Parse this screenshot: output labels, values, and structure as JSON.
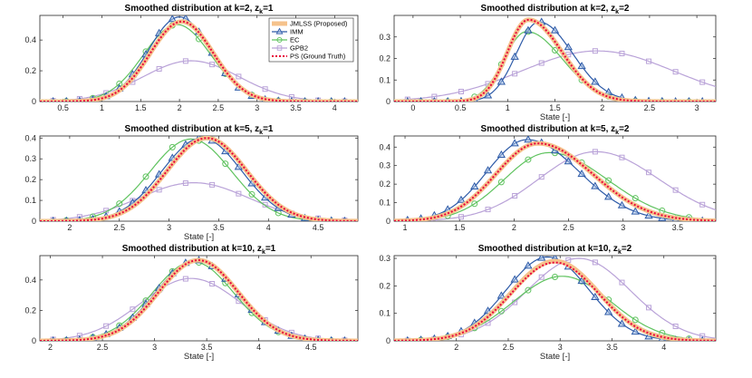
{
  "figure_title": "Smoothed distributions",
  "colors": {
    "jmlss": "#F5C28C",
    "imm": "#2E5BA8",
    "ec": "#5FC35F",
    "gpb2": "#B9A2D8",
    "ps": "#E8003C"
  },
  "legend": {
    "jmlss": "JMLSS (Proposed)",
    "imm": "IMM",
    "ec": "EC",
    "gpb2": "GPB2",
    "ps": "PS (Ground Truth)"
  },
  "chart_data": [
    {
      "type": "line",
      "title_text": "Smoothed distribution at k=2, z",
      "title_sub": "k",
      "title_suffix": "=1",
      "xlabel": "",
      "xlim": [
        0.2,
        4.3
      ],
      "ylim": [
        0,
        0.56
      ],
      "xticks": [
        0.5,
        1,
        1.5,
        2,
        2.5,
        3,
        3.5,
        4
      ],
      "yticks": [
        0,
        0.2,
        0.4
      ],
      "series": [
        {
          "name": "JMLSS (Proposed)",
          "key": "jmlss",
          "mu": 2.03,
          "sigma": 0.405,
          "peak": 0.52
        },
        {
          "name": "IMM",
          "key": "imm",
          "mu": 2.0,
          "sigma": 0.4,
          "peak": 0.55
        },
        {
          "name": "EC",
          "key": "ec",
          "mu": 1.97,
          "sigma": 0.435,
          "peak": 0.5
        },
        {
          "name": "GPB2",
          "key": "gpb2",
          "mu": 2.15,
          "sigma": 0.62,
          "peak": 0.265
        },
        {
          "name": "PS (Ground Truth)",
          "key": "ps",
          "mu": 2.03,
          "sigma": 0.405,
          "peak": 0.52
        }
      ]
    },
    {
      "type": "line",
      "title_text": "Smoothed distribution at k=2, z",
      "title_sub": "k",
      "title_suffix": "=2",
      "xlabel": "State [-]",
      "xlim": [
        -0.2,
        3.2
      ],
      "ylim": [
        0,
        0.4
      ],
      "xticks": [
        0,
        0.5,
        1,
        1.5,
        2,
        2.5,
        3
      ],
      "yticks": [
        0,
        0.1,
        0.2,
        0.3
      ],
      "series": [
        {
          "name": "JMLSS (Proposed)",
          "key": "jmlss",
          "mu": 1.22,
          "sigma": 0.28,
          "peak": 0.38,
          "skew": 1.6
        },
        {
          "name": "IMM",
          "key": "imm",
          "mu": 1.33,
          "sigma": 0.29,
          "peak": 0.37,
          "skew": 1.5
        },
        {
          "name": "EC",
          "key": "ec",
          "mu": 1.2,
          "sigma": 0.3,
          "peak": 0.325,
          "skew": 1.6
        },
        {
          "name": "GPB2",
          "key": "gpb2",
          "mu": 1.95,
          "sigma": 0.8,
          "peak": 0.235
        },
        {
          "name": "PS (Ground Truth)",
          "key": "ps",
          "mu": 1.22,
          "sigma": 0.28,
          "peak": 0.38,
          "skew": 1.6
        }
      ]
    },
    {
      "type": "line",
      "title_text": "Smoothed distribution at k=5, z",
      "title_sub": "k",
      "title_suffix": "=1",
      "xlabel": "State [-]",
      "xlim": [
        1.7,
        4.9
      ],
      "ylim": [
        0,
        0.41
      ],
      "xticks": [
        2,
        2.5,
        3,
        3.5,
        4,
        4.5
      ],
      "yticks": [
        0,
        0.1,
        0.2,
        0.3,
        0.4
      ],
      "series": [
        {
          "name": "JMLSS (Proposed)",
          "key": "jmlss",
          "mu": 3.38,
          "sigma": 0.4,
          "peak": 0.4
        },
        {
          "name": "IMM",
          "key": "imm",
          "mu": 3.33,
          "sigma": 0.4,
          "peak": 0.4
        },
        {
          "name": "EC",
          "key": "ec",
          "mu": 3.22,
          "sigma": 0.41,
          "peak": 0.395
        },
        {
          "name": "GPB2",
          "key": "gpb2",
          "mu": 3.25,
          "sigma": 0.55,
          "peak": 0.185
        },
        {
          "name": "PS (Ground Truth)",
          "key": "ps",
          "mu": 3.38,
          "sigma": 0.4,
          "peak": 0.4
        }
      ]
    },
    {
      "type": "line",
      "title_text": "Smoothed distribution at k=5, z",
      "title_sub": "k",
      "title_suffix": "=2",
      "xlabel": "",
      "xlim": [
        0.9,
        3.85
      ],
      "ylim": [
        0,
        0.46
      ],
      "xticks": [
        1,
        1.5,
        2,
        2.5,
        3,
        3.5
      ],
      "yticks": [
        0,
        0.1,
        0.2,
        0.3,
        0.4
      ],
      "series": [
        {
          "name": "JMLSS (Proposed)",
          "key": "jmlss",
          "mu": 2.22,
          "sigma": 0.44,
          "peak": 0.42,
          "skew": 1.3
        },
        {
          "name": "IMM",
          "key": "imm",
          "mu": 2.12,
          "sigma": 0.42,
          "peak": 0.44,
          "skew": 1.3
        },
        {
          "name": "EC",
          "key": "ec",
          "mu": 2.32,
          "sigma": 0.47,
          "peak": 0.37,
          "skew": 1.3
        },
        {
          "name": "GPB2",
          "key": "gpb2",
          "mu": 2.75,
          "sigma": 0.55,
          "peak": 0.375,
          "skew": 1.1
        },
        {
          "name": "PS (Ground Truth)",
          "key": "ps",
          "mu": 2.22,
          "sigma": 0.44,
          "peak": 0.42,
          "skew": 1.3
        }
      ]
    },
    {
      "type": "line",
      "title_text": "Smoothed distribution at k=10, z",
      "title_sub": "k",
      "title_suffix": "=1",
      "xlabel": "State [-]",
      "xlim": [
        1.9,
        4.95
      ],
      "ylim": [
        0,
        0.56
      ],
      "xticks": [
        2,
        2.5,
        3,
        3.5,
        4,
        4.5
      ],
      "yticks": [
        0,
        0.2,
        0.4
      ],
      "series": [
        {
          "name": "JMLSS (Proposed)",
          "key": "jmlss",
          "mu": 3.42,
          "sigma": 0.38,
          "peak": 0.53
        },
        {
          "name": "IMM",
          "key": "imm",
          "mu": 3.4,
          "sigma": 0.385,
          "peak": 0.53
        },
        {
          "name": "EC",
          "key": "ec",
          "mu": 3.37,
          "sigma": 0.39,
          "peak": 0.52
        },
        {
          "name": "GPB2",
          "key": "gpb2",
          "mu": 3.35,
          "sigma": 0.48,
          "peak": 0.41
        },
        {
          "name": "PS (Ground Truth)",
          "key": "ps",
          "mu": 3.42,
          "sigma": 0.38,
          "peak": 0.53
        }
      ]
    },
    {
      "type": "line",
      "title_text": "Smoothed distribution at k=10, z",
      "title_sub": "k",
      "title_suffix": "=2",
      "xlabel": "State [-]",
      "xlim": [
        1.4,
        4.5
      ],
      "ylim": [
        0,
        0.31
      ],
      "xticks": [
        2,
        2.5,
        3,
        3.5,
        4
      ],
      "yticks": [
        0,
        0.1,
        0.2,
        0.3
      ],
      "series": [
        {
          "name": "JMLSS (Proposed)",
          "key": "jmlss",
          "mu": 2.95,
          "sigma": 0.42,
          "peak": 0.29
        },
        {
          "name": "IMM",
          "key": "imm",
          "mu": 2.88,
          "sigma": 0.4,
          "peak": 0.305
        },
        {
          "name": "EC",
          "key": "ec",
          "mu": 3.02,
          "sigma": 0.47,
          "peak": 0.235
        },
        {
          "name": "GPB2",
          "key": "gpb2",
          "mu": 3.18,
          "sigma": 0.5,
          "peak": 0.3
        },
        {
          "name": "PS (Ground Truth)",
          "key": "ps",
          "mu": 2.95,
          "sigma": 0.42,
          "peak": 0.285
        }
      ]
    }
  ]
}
